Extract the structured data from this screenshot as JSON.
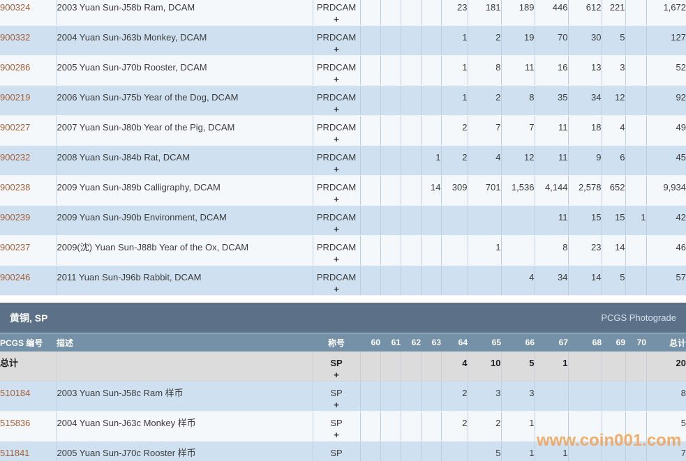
{
  "watermark": "www.coin001.com",
  "grade_keys": [
    "60",
    "61",
    "62",
    "63",
    "64",
    "65",
    "66",
    "67",
    "68",
    "69",
    "70"
  ],
  "section1": {
    "rows": [
      {
        "id": "900324",
        "desc": "2003 Yuan Sun-J58b Ram, DCAM",
        "desig": "PRDCAM",
        "plus": "+",
        "grades": {
          "64": "23",
          "65": "181",
          "66": "189",
          "67": "446",
          "68": "612",
          "69": "221"
        },
        "total": "1,672"
      },
      {
        "id": "900332",
        "desc": "2004 Yuan Sun-J63b Monkey, DCAM",
        "desig": "PRDCAM",
        "plus": "+",
        "grades": {
          "64": "1",
          "65": "2",
          "66": "19",
          "67": "70",
          "68": "30",
          "69": "5"
        },
        "total": "127"
      },
      {
        "id": "900286",
        "desc": "2005 Yuan Sun-J70b Rooster, DCAM",
        "desig": "PRDCAM",
        "plus": "+",
        "grades": {
          "64": "1",
          "65": "8",
          "66": "11",
          "67": "16",
          "68": "13",
          "69": "3"
        },
        "total": "52"
      },
      {
        "id": "900219",
        "desc": "2006 Yuan Sun-J75b Year of the Dog, DCAM",
        "desig": "PRDCAM",
        "plus": "+",
        "grades": {
          "64": "1",
          "65": "2",
          "66": "8",
          "67": "35",
          "68": "34",
          "69": "12"
        },
        "total": "92"
      },
      {
        "id": "900227",
        "desc": "2007 Yuan Sun-J80b Year of the Pig, DCAM",
        "desig": "PRDCAM",
        "plus": "+",
        "grades": {
          "64": "2",
          "65": "7",
          "66": "7",
          "67": "11",
          "68": "18",
          "69": "4"
        },
        "total": "49"
      },
      {
        "id": "900232",
        "desc": "2008 Yuan Sun-J84b Rat, DCAM",
        "desig": "PRDCAM",
        "plus": "+",
        "grades": {
          "63": "1",
          "64": "2",
          "65": "4",
          "66": "12",
          "67": "11",
          "68": "9",
          "69": "6"
        },
        "total": "45"
      },
      {
        "id": "900238",
        "desc": "2009 Yuan Sun-J89b Calligraphy, DCAM",
        "desig": "PRDCAM",
        "plus": "+",
        "grades": {
          "63": "14",
          "64": "309",
          "65": "701",
          "66": "1,536",
          "67": "4,144",
          "68": "2,578",
          "69": "652"
        },
        "total": "9,934"
      },
      {
        "id": "900239",
        "desc": "2009 Yuan Sun-J90b Environment, DCAM",
        "desig": "PRDCAM",
        "plus": "+",
        "grades": {
          "67": "11",
          "68": "15",
          "69": "15",
          "70": "1"
        },
        "total": "42"
      },
      {
        "id": "900237",
        "desc": "2009(沈) Yuan Sun-J88b Year of the Ox, DCAM",
        "desig": "PRDCAM",
        "plus": "+",
        "grades": {
          "65": "1",
          "67": "8",
          "68": "23",
          "69": "14"
        },
        "total": "46"
      },
      {
        "id": "900246",
        "desc": "2011 Yuan Sun-J96b Rabbit, DCAM",
        "desig": "PRDCAM",
        "plus": "+",
        "grades": {
          "66": "4",
          "67": "34",
          "68": "14",
          "69": "5"
        },
        "total": "57"
      }
    ]
  },
  "section2": {
    "title": "黄铜, SP",
    "photograde_label": "PCGS Photograde",
    "headers": {
      "number": "PCGS 编号",
      "desc": "描述",
      "desig": "称号",
      "total": "总计"
    },
    "totals": {
      "label": "总计",
      "desc": "",
      "desig": "SP",
      "plus": "+",
      "grades": {
        "64": "4",
        "65": "10",
        "66": "5",
        "67": "1"
      },
      "total": "20"
    },
    "rows": [
      {
        "id": "510184",
        "desc": "2003 Yuan Sun-J58c Ram 样币",
        "desig": "SP",
        "plus": "+",
        "grades": {
          "64": "2",
          "65": "3",
          "66": "3"
        },
        "total": "8"
      },
      {
        "id": "515836",
        "desc": "2004 Yuan Sun-J63c Monkey 样币",
        "desig": "SP",
        "plus": "+",
        "grades": {
          "64": "2",
          "65": "2",
          "66": "1"
        },
        "total": "5"
      },
      {
        "id": "511841",
        "desc": "2005 Yuan Sun-J70c Rooster 样币",
        "desig": "SP",
        "plus": "+",
        "grades": {
          "65": "5",
          "66": "1",
          "67": "1"
        },
        "total": "7"
      }
    ]
  },
  "colors": {
    "accent_link": "#a4603a",
    "section_bar": "#5c7187",
    "column_header": "#7491a8",
    "row_blue": "#cfe1f0",
    "row_light": "#f4f8fb",
    "totals_bg": "#dcdcdc",
    "watermark_orange": "#f0a45c"
  }
}
